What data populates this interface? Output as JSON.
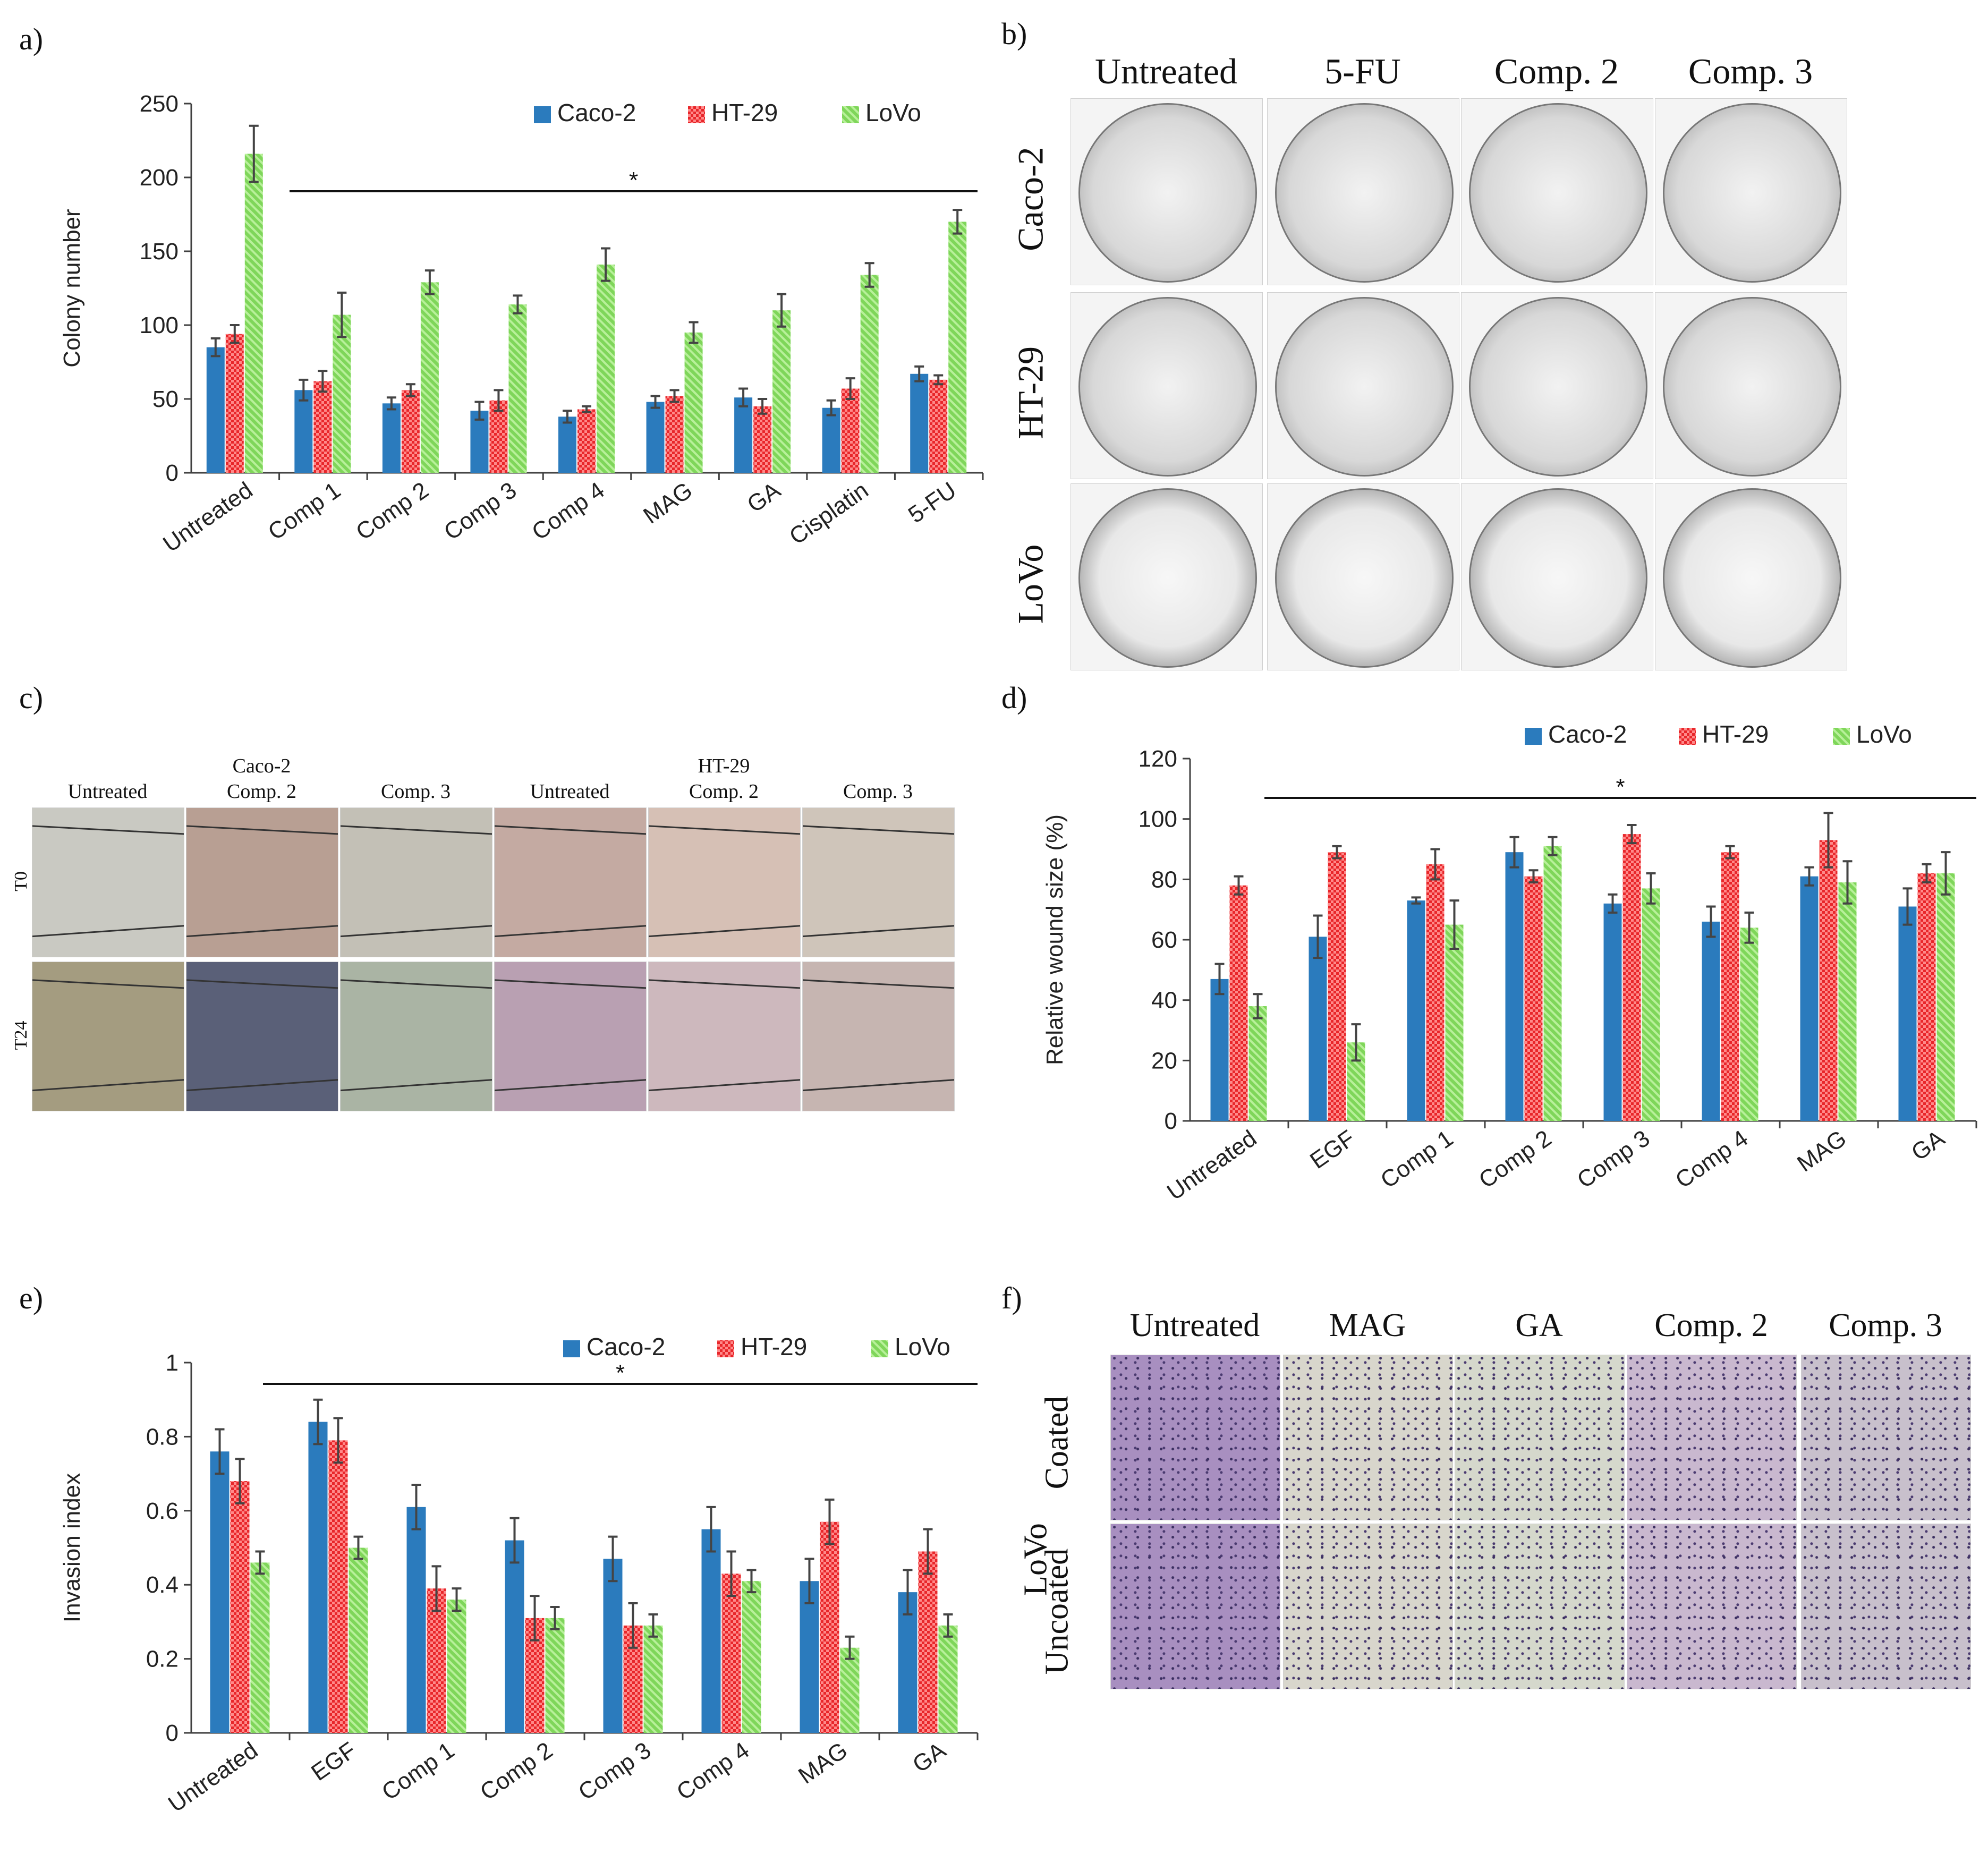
{
  "panels": {
    "a": {
      "letter": "a)"
    },
    "b": {
      "letter": "b)"
    },
    "c": {
      "letter": "c)"
    },
    "d": {
      "letter": "d)"
    },
    "e": {
      "letter": "e)"
    },
    "f": {
      "letter": "f)"
    }
  },
  "colors": {
    "caco2": "#2b7bbd",
    "ht29": "#e8262a",
    "lovo": "#7fd65a",
    "axis": "#404040"
  },
  "chart_data": [
    {
      "id": "a",
      "type": "bar",
      "ylabel": "Colony number",
      "xlabel": "",
      "ylim": [
        0,
        250
      ],
      "yticks": [
        "0",
        "50",
        "100",
        "150",
        "200",
        "250"
      ],
      "categories": [
        "Untreated",
        "Comp 1",
        "Comp 2",
        "Comp 3",
        "Comp 4",
        "MAG",
        "GA",
        "Cisplatin",
        "5-FU"
      ],
      "series": [
        {
          "name": "Caco-2",
          "values": [
            85,
            56,
            47,
            42,
            38,
            48,
            51,
            44,
            67
          ],
          "errors": [
            6,
            7,
            4,
            6,
            4,
            4,
            6,
            5,
            5
          ]
        },
        {
          "name": "HT-29",
          "values": [
            94,
            62,
            56,
            49,
            43,
            52,
            45,
            57,
            63
          ],
          "errors": [
            6,
            7,
            4,
            7,
            2,
            4,
            5,
            7,
            3
          ]
        },
        {
          "name": "LoVo",
          "values": [
            216,
            107,
            129,
            114,
            141,
            95,
            110,
            134,
            170
          ],
          "errors": [
            19,
            15,
            8,
            6,
            11,
            7,
            11,
            8,
            8
          ]
        }
      ],
      "annotation": "*",
      "legend": "top-right"
    },
    {
      "id": "d",
      "type": "bar",
      "ylabel": "Relative wound size (%)",
      "xlabel": "",
      "ylim": [
        0,
        120
      ],
      "yticks": [
        "0",
        "20",
        "40",
        "60",
        "80",
        "100",
        "120"
      ],
      "categories": [
        "Untreated",
        "EGF",
        "Comp 1",
        "Comp 2",
        "Comp 3",
        "Comp 4",
        "MAG",
        "GA"
      ],
      "series": [
        {
          "name": "Caco-2",
          "values": [
            47,
            61,
            73,
            89,
            72,
            66,
            81,
            71
          ],
          "errors": [
            5,
            7,
            1,
            5,
            3,
            5,
            3,
            6
          ]
        },
        {
          "name": "HT-29",
          "values": [
            78,
            89,
            85,
            81,
            95,
            89,
            93,
            82
          ],
          "errors": [
            3,
            2,
            5,
            2,
            3,
            2,
            9,
            3
          ]
        },
        {
          "name": "LoVo",
          "values": [
            38,
            26,
            65,
            91,
            77,
            64,
            79,
            82
          ],
          "errors": [
            4,
            6,
            8,
            3,
            5,
            5,
            7,
            7
          ]
        }
      ],
      "annotation": "*",
      "legend": "top-right"
    },
    {
      "id": "e",
      "type": "bar",
      "ylabel": "Invasion index",
      "xlabel": "",
      "ylim": [
        0,
        1
      ],
      "yticks": [
        "0",
        "0.2",
        "0.4",
        "0.6",
        "0.8",
        "1"
      ],
      "categories": [
        "Untreated",
        "EGF",
        "Comp 1",
        "Comp 2",
        "Comp 3",
        "Comp 4",
        "MAG",
        "GA"
      ],
      "series": [
        {
          "name": "Caco-2",
          "values": [
            0.76,
            0.84,
            0.61,
            0.52,
            0.47,
            0.55,
            0.41,
            0.38
          ],
          "errors": [
            0.06,
            0.06,
            0.06,
            0.06,
            0.06,
            0.06,
            0.06,
            0.06
          ]
        },
        {
          "name": "HT-29",
          "values": [
            0.68,
            0.79,
            0.39,
            0.31,
            0.29,
            0.43,
            0.57,
            0.49
          ],
          "errors": [
            0.06,
            0.06,
            0.06,
            0.06,
            0.06,
            0.06,
            0.06,
            0.06
          ]
        },
        {
          "name": "LoVo",
          "values": [
            0.46,
            0.5,
            0.36,
            0.31,
            0.29,
            0.41,
            0.23,
            0.29
          ],
          "errors": [
            0.03,
            0.03,
            0.03,
            0.03,
            0.03,
            0.03,
            0.03,
            0.03
          ]
        }
      ],
      "annotation": "*",
      "legend": "top-right"
    }
  ],
  "figure_b": {
    "columns": [
      "Untreated",
      "5-FU",
      "Comp. 2",
      "Comp. 3"
    ],
    "rows": [
      "Caco-2",
      "HT-29",
      "LoVo"
    ]
  },
  "figure_c": {
    "group_labels": [
      "Caco-2",
      "HT-29"
    ],
    "columns": [
      "Untreated",
      "Comp. 2",
      "Comp. 3",
      "Untreated",
      "Comp. 2",
      "Comp. 3"
    ],
    "rows": [
      "T0",
      "T24"
    ]
  },
  "figure_f": {
    "columns": [
      "Untreated",
      "MAG",
      "GA",
      "Comp. 2",
      "Comp. 3"
    ],
    "rows": [
      "Coated",
      "Uncoated"
    ],
    "side_label": "LoVo"
  }
}
